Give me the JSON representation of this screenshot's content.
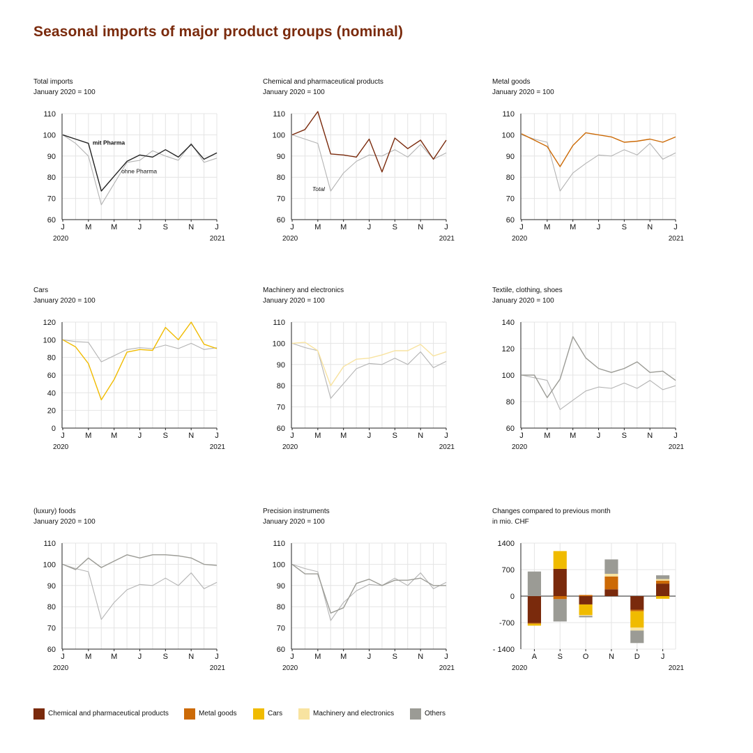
{
  "title": "Seasonal imports of major product groups (nominal)",
  "colors": {
    "chem": "#7a2a0c",
    "metal": "#cc6a06",
    "cars": "#f0bb00",
    "machinery": "#f8e3a0",
    "others": "#9b9b95",
    "total": "#b3b3b3",
    "mitpharma": "#222222",
    "grid": "#e4e4e4"
  },
  "x_ticks": [
    "J",
    "M",
    "M",
    "J",
    "S",
    "N",
    "J"
  ],
  "year_start": "2020",
  "year_end": "2021",
  "chart_data": [
    {
      "id": "total",
      "type": "line",
      "title": "Total imports",
      "subtitle": "January 2020 = 100",
      "ylim": [
        60,
        110
      ],
      "yticks": [
        "110",
        "100",
        "90",
        "80",
        "70",
        "60"
      ],
      "series": [
        {
          "name": "ohne Pharma",
          "color": "total",
          "label": "ohne Pharma",
          "values": [
            100,
            96,
            90,
            67,
            77,
            87,
            88,
            92.5,
            90,
            88,
            96,
            87,
            89
          ]
        },
        {
          "name": "mit Pharma",
          "color": "mitpharma",
          "label": "mit Pharma",
          "values": [
            100,
            98,
            96,
            73.5,
            80.5,
            87.5,
            90.5,
            89.5,
            93,
            89.5,
            95.5,
            88.5,
            91.5
          ]
        }
      ]
    },
    {
      "id": "chem",
      "type": "line",
      "title": "Chemical and pharmaceutical products",
      "subtitle": "January 2020 = 100",
      "ylim": [
        60,
        110
      ],
      "yticks": [
        "110",
        "100",
        "90",
        "80",
        "70",
        "60"
      ],
      "series": [
        {
          "name": "Total",
          "color": "total",
          "label": "Total",
          "values": [
            100,
            98,
            96,
            73.5,
            82,
            87.5,
            90.5,
            90,
            93,
            89.5,
            95.5,
            88.5,
            91.5
          ]
        },
        {
          "name": "Chemical and pharmaceutical products",
          "color": "chem",
          "label": "",
          "values": [
            100,
            102.5,
            111,
            91,
            90.5,
            89.5,
            98,
            82.5,
            98.5,
            93.5,
            97.5,
            88.5,
            97.5
          ]
        }
      ]
    },
    {
      "id": "metal",
      "type": "line",
      "title": "Metal goods",
      "subtitle": "January 2020 = 100",
      "ylim": [
        60,
        110
      ],
      "yticks": [
        "110",
        "100",
        "90",
        "80",
        "70",
        "60"
      ],
      "series": [
        {
          "name": "Total",
          "color": "total",
          "label": "",
          "values": [
            100,
            98,
            96.5,
            73.5,
            82,
            86.5,
            90.5,
            90,
            93,
            90.5,
            96,
            88.5,
            91.5
          ]
        },
        {
          "name": "Metal goods",
          "color": "metal",
          "label": "",
          "values": [
            100.5,
            97.5,
            94.5,
            85,
            95,
            101,
            100,
            99,
            96.5,
            97,
            98,
            96.5,
            99
          ]
        }
      ]
    },
    {
      "id": "cars",
      "type": "line",
      "title": "Cars",
      "subtitle": "January 2020 = 100",
      "ylim": [
        0,
        120
      ],
      "yticks": [
        "120",
        "100",
        "80",
        "60",
        "40",
        "20",
        "0"
      ],
      "series": [
        {
          "name": "Total",
          "color": "total",
          "label": "",
          "values": [
            100,
            98,
            97,
            75,
            82,
            89,
            91,
            90,
            94,
            90,
            96,
            89,
            91
          ]
        },
        {
          "name": "Cars",
          "color": "cars",
          "label": "",
          "values": [
            100,
            92,
            73,
            32,
            55,
            86,
            89,
            88,
            114,
            100,
            120,
            95,
            90
          ]
        }
      ]
    },
    {
      "id": "machinery",
      "type": "line",
      "title": "Machinery and electronics",
      "subtitle": "January  2020 = 100",
      "ylim": [
        60,
        110
      ],
      "yticks": [
        "110",
        "100",
        "90",
        "80",
        "70",
        "60"
      ],
      "series": [
        {
          "name": "Total",
          "color": "total",
          "label": "",
          "values": [
            100,
            98,
            96.5,
            74,
            81,
            88,
            90.5,
            90,
            93,
            90,
            96,
            88.5,
            91.5
          ]
        },
        {
          "name": "Machinery and electronics",
          "color": "machinery",
          "label": "",
          "values": [
            100,
            100.5,
            96.5,
            80,
            89,
            92.5,
            93,
            94.5,
            96.5,
            96.5,
            99.5,
            94,
            96
          ]
        }
      ]
    },
    {
      "id": "textile",
      "type": "line",
      "title": "Textile, clothing, shoes",
      "subtitle": "January 2020 = 100",
      "ylim": [
        60,
        140
      ],
      "yticks": [
        "140",
        "120",
        "100",
        "80",
        "60"
      ],
      "series": [
        {
          "name": "Total",
          "color": "total",
          "label": "",
          "values": [
            100,
            98,
            96,
            74,
            81,
            88,
            91,
            90,
            94,
            90,
            96,
            89,
            92
          ]
        },
        {
          "name": "Textile, clothing, shoes",
          "color": "others",
          "label": "",
          "values": [
            100,
            100,
            83,
            97,
            129,
            113,
            105,
            102,
            105,
            110,
            102,
            103,
            96
          ]
        }
      ]
    },
    {
      "id": "foods",
      "type": "line",
      "title": "(luxury) foods",
      "subtitle": "January 2020 = 100",
      "ylim": [
        60,
        110
      ],
      "yticks": [
        "110",
        "100",
        "90",
        "80",
        "70",
        "60"
      ],
      "series": [
        {
          "name": "Total",
          "color": "total",
          "label": "",
          "values": [
            100,
            98,
            96.5,
            74,
            82,
            88,
            90.5,
            90,
            93.5,
            90,
            96,
            88.5,
            91.5
          ]
        },
        {
          "name": "(luxury) foods",
          "color": "others",
          "label": "",
          "values": [
            100,
            97.5,
            103,
            98.5,
            101.5,
            104.5,
            103,
            104.5,
            104.5,
            104,
            103,
            100,
            99.5
          ]
        }
      ]
    },
    {
      "id": "precision",
      "type": "line",
      "title": "Precision instruments",
      "subtitle": "January 2020 = 100",
      "ylim": [
        60,
        110
      ],
      "yticks": [
        "110",
        "100",
        "90",
        "80",
        "70",
        "60"
      ],
      "series": [
        {
          "name": "Total",
          "color": "total",
          "label": "",
          "values": [
            100,
            98,
            96.5,
            73.5,
            82,
            87.5,
            90.5,
            90,
            93.5,
            90,
            96,
            88.5,
            91.5
          ]
        },
        {
          "name": "Precision instruments",
          "color": "others",
          "label": "",
          "values": [
            100,
            95.5,
            95.5,
            77,
            79.5,
            91,
            93,
            90,
            92.5,
            92.5,
            93.5,
            90,
            90
          ]
        }
      ]
    },
    {
      "id": "changes",
      "type": "bar",
      "stacked": true,
      "title": "Changes compared to previous month",
      "subtitle": "in mio. CHF",
      "ylim": [
        -1400,
        1400
      ],
      "yticks": [
        "1400",
        "700",
        "0",
        "-700",
        "- 1400"
      ],
      "categories": [
        "A",
        "S",
        "O",
        "N",
        "D",
        "J"
      ],
      "series": [
        {
          "name": "Chemical and pharmaceutical products",
          "color": "chem",
          "values": [
            -710,
            720,
            -220,
            180,
            -360,
            330
          ]
        },
        {
          "name": "Metal goods",
          "color": "metal",
          "values": [
            -20,
            -80,
            30,
            340,
            -40,
            80
          ]
        },
        {
          "name": "Cars",
          "color": "cars",
          "values": [
            -50,
            470,
            -280,
            0,
            -430,
            -70
          ]
        },
        {
          "name": "Machinery and electronics",
          "color": "machinery",
          "values": [
            0,
            0,
            -20,
            70,
            -80,
            40
          ]
        },
        {
          "name": "Others",
          "color": "others",
          "values": [
            650,
            -590,
            -40,
            380,
            -330,
            100
          ]
        }
      ]
    }
  ],
  "legend": [
    {
      "label": "Chemical and pharmaceutical products",
      "color": "chem"
    },
    {
      "label": "Metal goods",
      "color": "metal"
    },
    {
      "label": "Cars",
      "color": "cars"
    },
    {
      "label": "Machinery and electronics",
      "color": "machinery"
    },
    {
      "label": "Others",
      "color": "others"
    }
  ]
}
